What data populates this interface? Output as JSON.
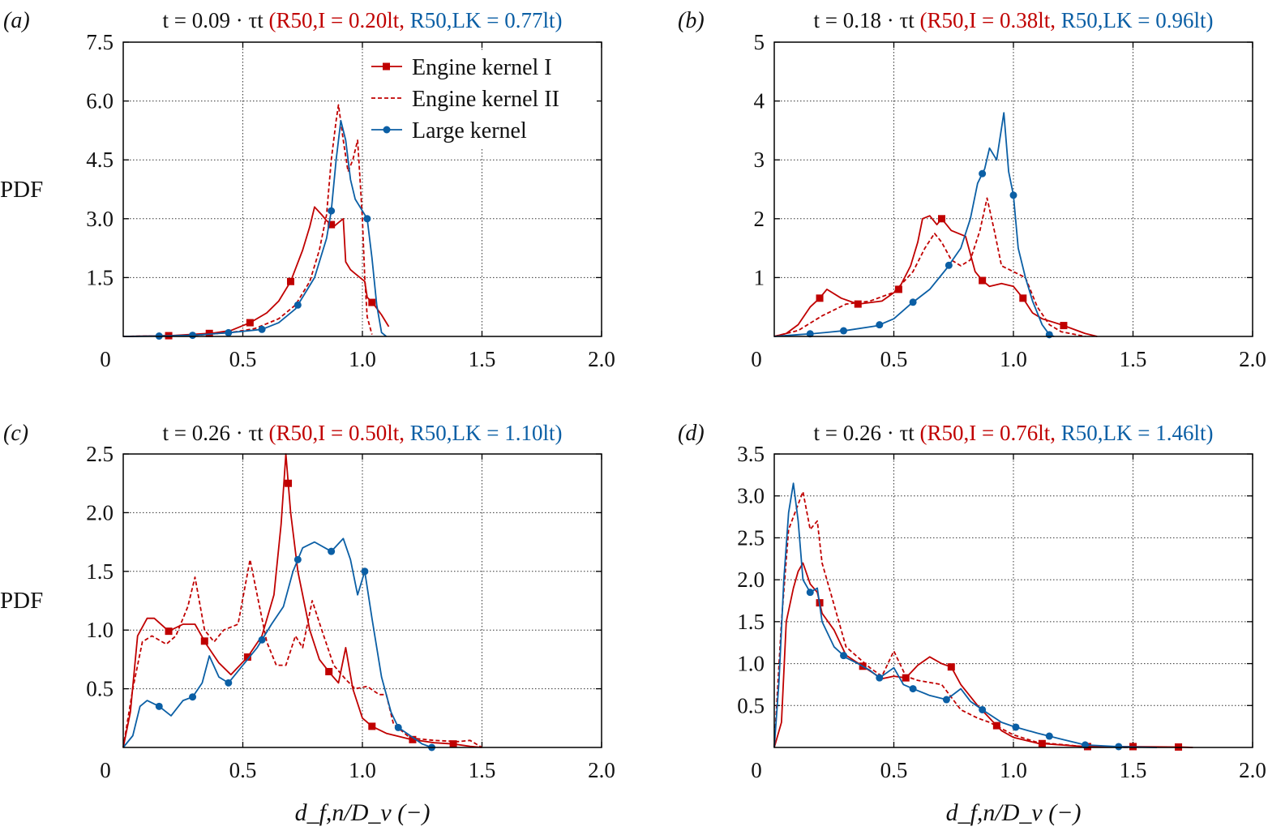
{
  "colors": {
    "engine_kernel_1": "#c00000",
    "engine_kernel_2": "#c00000",
    "large_kernel": "#0b5fa5"
  },
  "legend": [
    "Engine kernel I",
    "Engine kernel II",
    "Large kernel"
  ],
  "ylabel": "PDF",
  "xlabel": "d_f,n/D_v (−)",
  "chart_data": [
    {
      "type": "line",
      "panel": "(a)",
      "title": {
        "time": "t = 0.09 · τt",
        "red": "(R50,I = 0.20lt,",
        "blue": "R50,LK = 0.77lt)"
      },
      "xlim": [
        0,
        2.0
      ],
      "ylim": [
        0,
        7.5
      ],
      "grid": true,
      "legend": "top-right",
      "xticks": [
        "0.5",
        "1.0",
        "1.5",
        "2.0"
      ],
      "xtick_values": [
        0.5,
        1.0,
        1.5,
        2.0
      ],
      "yticks": [
        "1.5",
        "3.0",
        "4.5",
        "6.0",
        "7.5"
      ],
      "ytick_values": [
        1.5,
        3.0,
        4.5,
        6.0,
        7.5
      ],
      "origin_label": "0",
      "series": [
        {
          "name": "Engine kernel I",
          "style": "solid",
          "marker": "square",
          "marker_x": [
            0.19,
            0.36,
            0.53,
            0.7,
            0.87,
            1.04
          ],
          "x": [
            0,
            0.2,
            0.37,
            0.45,
            0.53,
            0.6,
            0.65,
            0.7,
            0.75,
            0.78,
            0.8,
            0.83,
            0.85,
            0.88,
            0.9,
            0.92,
            0.93,
            0.95,
            0.97,
            0.99,
            1.01,
            1.02,
            1.05,
            1.08,
            1.11
          ],
          "y": [
            0,
            0.02,
            0.08,
            0.15,
            0.35,
            0.6,
            0.9,
            1.4,
            2.2,
            2.8,
            3.3,
            3.1,
            2.95,
            2.8,
            2.9,
            3.0,
            1.9,
            1.7,
            1.6,
            1.5,
            1.4,
            1.0,
            0.8,
            0.55,
            0.25
          ]
        },
        {
          "name": "Engine kernel II",
          "style": "dashed",
          "marker": "none",
          "marker_x": [],
          "x": [
            0,
            0.3,
            0.45,
            0.55,
            0.65,
            0.72,
            0.78,
            0.82,
            0.85,
            0.87,
            0.89,
            0.9,
            0.92,
            0.94,
            0.96,
            0.98,
            0.99,
            1.0,
            1.01,
            1.02,
            1.04
          ],
          "y": [
            0,
            0.03,
            0.1,
            0.2,
            0.45,
            0.8,
            1.4,
            2.2,
            3.1,
            4.5,
            5.5,
            5.9,
            5.0,
            4.2,
            4.5,
            5.0,
            4.0,
            3.0,
            1.5,
            0.5,
            0.05
          ]
        },
        {
          "name": "Large kernel",
          "style": "solid",
          "marker": "circle",
          "marker_x": [
            0.15,
            0.29,
            0.44,
            0.58,
            0.73,
            0.87,
            1.02
          ],
          "x": [
            0,
            0.15,
            0.3,
            0.45,
            0.58,
            0.65,
            0.72,
            0.8,
            0.85,
            0.87,
            0.89,
            0.91,
            0.93,
            0.95,
            0.97,
            1.0,
            1.02,
            1.04,
            1.06,
            1.08,
            1.1
          ],
          "y": [
            0,
            0.01,
            0.03,
            0.1,
            0.18,
            0.35,
            0.7,
            1.5,
            2.5,
            3.2,
            4.5,
            5.5,
            5.0,
            4.0,
            3.5,
            3.2,
            3.0,
            2.0,
            0.8,
            0.1,
            0
          ]
        }
      ]
    },
    {
      "type": "line",
      "panel": "(b)",
      "title": {
        "time": "t = 0.18 · τt",
        "red": "(R50,I = 0.38lt,",
        "blue": "R50,LK = 0.96lt)"
      },
      "xlim": [
        0,
        2.0
      ],
      "ylim": [
        0,
        5
      ],
      "grid": true,
      "xticks": [
        "0.5",
        "1.0",
        "1.5",
        "2.0"
      ],
      "xtick_values": [
        0.5,
        1.0,
        1.5,
        2.0
      ],
      "yticks": [
        "1",
        "2",
        "3",
        "4",
        "5"
      ],
      "ytick_values": [
        1,
        2,
        3,
        4,
        5
      ],
      "origin_label": "0",
      "series": [
        {
          "name": "Engine kernel I",
          "style": "solid",
          "marker": "square",
          "marker_x": [
            0.19,
            0.35,
            0.52,
            0.7,
            0.87,
            1.04,
            1.21
          ],
          "x": [
            0,
            0.05,
            0.1,
            0.15,
            0.19,
            0.22,
            0.28,
            0.35,
            0.45,
            0.52,
            0.57,
            0.6,
            0.62,
            0.65,
            0.68,
            0.7,
            0.74,
            0.8,
            0.84,
            0.87,
            0.9,
            0.95,
            1.0,
            1.04,
            1.08,
            1.12,
            1.2,
            1.3,
            1.35
          ],
          "y": [
            0,
            0.05,
            0.2,
            0.5,
            0.65,
            0.8,
            0.65,
            0.55,
            0.6,
            0.8,
            1.2,
            1.6,
            2.0,
            2.05,
            1.9,
            2.0,
            1.8,
            1.7,
            1.1,
            0.95,
            0.85,
            0.9,
            0.85,
            0.65,
            0.4,
            0.3,
            0.2,
            0.05,
            0
          ]
        },
        {
          "name": "Engine kernel II",
          "style": "dashed",
          "marker": "none",
          "marker_x": [],
          "x": [
            0,
            0.1,
            0.2,
            0.3,
            0.4,
            0.5,
            0.58,
            0.63,
            0.67,
            0.7,
            0.74,
            0.78,
            0.82,
            0.86,
            0.89,
            0.92,
            0.95,
            1.0,
            1.05,
            1.1,
            1.15,
            1.2,
            1.3
          ],
          "y": [
            0,
            0.1,
            0.35,
            0.55,
            0.6,
            0.75,
            1.1,
            1.5,
            1.75,
            1.6,
            1.3,
            1.2,
            1.3,
            1.8,
            2.35,
            1.8,
            1.2,
            1.1,
            1.0,
            0.5,
            0.2,
            0.08,
            0
          ]
        },
        {
          "name": "Large kernel",
          "style": "solid",
          "marker": "circle",
          "marker_x": [
            0.15,
            0.29,
            0.44,
            0.58,
            0.73,
            0.87,
            1.0,
            1.15
          ],
          "x": [
            0,
            0.1,
            0.17,
            0.3,
            0.43,
            0.5,
            0.57,
            0.65,
            0.72,
            0.78,
            0.82,
            0.85,
            0.88,
            0.9,
            0.93,
            0.96,
            0.98,
            1.0,
            1.02,
            1.05,
            1.08,
            1.12,
            1.15,
            1.17
          ],
          "y": [
            0,
            0.03,
            0.05,
            0.1,
            0.18,
            0.3,
            0.55,
            0.8,
            1.15,
            1.5,
            2.0,
            2.6,
            2.85,
            3.2,
            3.0,
            3.8,
            2.8,
            2.4,
            1.5,
            1.0,
            0.6,
            0.2,
            0.03,
            0
          ]
        }
      ]
    },
    {
      "type": "line",
      "panel": "(c)",
      "title": {
        "time": "t = 0.26 · τt",
        "red": "(R50,I = 0.50lt,",
        "blue": "R50,LK = 1.10lt)"
      },
      "xlim": [
        0,
        2.0
      ],
      "ylim": [
        0,
        2.5
      ],
      "grid": true,
      "xticks": [
        "0.5",
        "1.0",
        "1.5",
        "2.0"
      ],
      "xtick_values": [
        0.5,
        1.0,
        1.5,
        2.0
      ],
      "yticks": [
        "0.5",
        "1.0",
        "1.5",
        "2.0",
        "2.5"
      ],
      "ytick_values": [
        0.5,
        1.0,
        1.5,
        2.0,
        2.5
      ],
      "origin_label": "0",
      "series": [
        {
          "name": "Engine kernel I",
          "style": "solid",
          "marker": "square",
          "marker_x": [
            0.19,
            0.34,
            0.52,
            0.69,
            0.86,
            1.04,
            1.21,
            1.38
          ],
          "x": [
            0,
            0.03,
            0.06,
            0.1,
            0.13,
            0.19,
            0.25,
            0.3,
            0.35,
            0.4,
            0.45,
            0.52,
            0.58,
            0.63,
            0.66,
            0.68,
            0.7,
            0.73,
            0.78,
            0.82,
            0.87,
            0.9,
            0.93,
            0.96,
            1.0,
            1.04,
            1.1,
            1.2,
            1.3,
            1.38,
            1.45,
            1.5
          ],
          "y": [
            0,
            0.3,
            0.95,
            1.1,
            1.1,
            0.99,
            1.05,
            1.05,
            0.87,
            0.72,
            0.62,
            0.77,
            0.95,
            1.3,
            1.9,
            2.5,
            2.0,
            1.5,
            1.0,
            0.75,
            0.62,
            0.55,
            0.85,
            0.5,
            0.25,
            0.18,
            0.12,
            0.07,
            0.04,
            0.03,
            0.01,
            0
          ]
        },
        {
          "name": "Engine kernel II",
          "style": "dashed",
          "marker": "none",
          "marker_x": [],
          "x": [
            0,
            0.04,
            0.08,
            0.12,
            0.18,
            0.22,
            0.27,
            0.3,
            0.34,
            0.38,
            0.42,
            0.48,
            0.53,
            0.56,
            0.6,
            0.64,
            0.68,
            0.72,
            0.75,
            0.79,
            0.83,
            0.88,
            0.93,
            0.97,
            1.02,
            1.07,
            1.1,
            1.13,
            1.2,
            1.3,
            1.4,
            1.45,
            1.5
          ],
          "y": [
            0,
            0.5,
            0.9,
            0.95,
            0.88,
            0.95,
            1.2,
            1.45,
            1.0,
            0.9,
            1.0,
            1.05,
            1.6,
            1.3,
            0.9,
            0.7,
            0.7,
            0.95,
            0.85,
            1.25,
            1.0,
            0.7,
            0.58,
            0.5,
            0.52,
            0.45,
            0.45,
            0.2,
            0.08,
            0.06,
            0.05,
            0.06,
            0
          ]
        },
        {
          "name": "Large kernel",
          "style": "solid",
          "marker": "circle",
          "marker_x": [
            0.15,
            0.29,
            0.44,
            0.58,
            0.73,
            0.87,
            1.01,
            1.15,
            1.29
          ],
          "x": [
            0,
            0.04,
            0.07,
            0.1,
            0.15,
            0.2,
            0.25,
            0.29,
            0.33,
            0.36,
            0.4,
            0.44,
            0.5,
            0.56,
            0.62,
            0.67,
            0.71,
            0.75,
            0.8,
            0.87,
            0.92,
            0.95,
            0.98,
            1.01,
            1.04,
            1.08,
            1.12,
            1.15,
            1.2,
            1.25,
            1.29
          ],
          "y": [
            0,
            0.1,
            0.35,
            0.4,
            0.35,
            0.27,
            0.4,
            0.43,
            0.55,
            0.78,
            0.6,
            0.55,
            0.7,
            0.85,
            1.05,
            1.2,
            1.5,
            1.7,
            1.75,
            1.67,
            1.78,
            1.6,
            1.3,
            1.5,
            1.1,
            0.6,
            0.3,
            0.17,
            0.1,
            0.03,
            0
          ]
        }
      ]
    },
    {
      "type": "line",
      "panel": "(d)",
      "title": {
        "time": "t = 0.26 · τt",
        "red": "(R50,I = 0.76lt,",
        "blue": "R50,LK = 1.46lt)"
      },
      "xlim": [
        0,
        2.0
      ],
      "ylim": [
        0,
        3.5
      ],
      "grid": true,
      "xticks": [
        "0.5",
        "1.0",
        "1.5",
        "2.0"
      ],
      "xtick_values": [
        0.5,
        1.0,
        1.5,
        2.0
      ],
      "yticks": [
        "0.5",
        "1.0",
        "1.5",
        "2.0",
        "2.5",
        "3.0",
        "3.5"
      ],
      "ytick_values": [
        0.5,
        1.0,
        1.5,
        2.0,
        2.5,
        3.0,
        3.5
      ],
      "origin_label": "0",
      "series": [
        {
          "name": "Engine kernel I",
          "style": "solid",
          "marker": "square",
          "marker_x": [
            0.19,
            0.37,
            0.55,
            0.74,
            0.93,
            1.12,
            1.31,
            1.5,
            1.69
          ],
          "x": [
            0,
            0.03,
            0.05,
            0.08,
            0.1,
            0.12,
            0.15,
            0.18,
            0.2,
            0.25,
            0.3,
            0.38,
            0.45,
            0.5,
            0.55,
            0.6,
            0.65,
            0.7,
            0.74,
            0.78,
            0.85,
            0.9,
            0.95,
            1.0,
            1.1,
            1.3,
            1.5,
            1.7,
            1.75
          ],
          "y": [
            0,
            0.3,
            1.5,
            1.9,
            2.1,
            2.2,
            1.95,
            1.85,
            1.6,
            1.4,
            1.1,
            0.95,
            0.82,
            0.85,
            0.83,
            0.98,
            1.08,
            1.0,
            0.96,
            0.75,
            0.5,
            0.35,
            0.2,
            0.12,
            0.05,
            0.01,
            0.01,
            0.005,
            0
          ]
        },
        {
          "name": "Engine kernel II",
          "style": "dashed",
          "marker": "none",
          "marker_x": [],
          "x": [
            0,
            0.03,
            0.06,
            0.1,
            0.12,
            0.15,
            0.18,
            0.2,
            0.25,
            0.3,
            0.4,
            0.45,
            0.5,
            0.55,
            0.6,
            0.7,
            0.78,
            0.85,
            0.9,
            1.0,
            1.1,
            1.3,
            1.5
          ],
          "y": [
            0,
            1.5,
            2.6,
            2.9,
            3.05,
            2.6,
            2.7,
            2.2,
            1.7,
            1.2,
            0.95,
            0.85,
            1.15,
            0.85,
            0.8,
            0.75,
            0.45,
            0.35,
            0.3,
            0.15,
            0.06,
            0.01,
            0
          ]
        },
        {
          "name": "Large kernel",
          "style": "solid",
          "marker": "circle",
          "marker_x": [
            0.15,
            0.29,
            0.44,
            0.58,
            0.72,
            0.87,
            1.01,
            1.15,
            1.3,
            1.44
          ],
          "x": [
            0,
            0.02,
            0.04,
            0.06,
            0.08,
            0.1,
            0.12,
            0.15,
            0.18,
            0.2,
            0.25,
            0.3,
            0.35,
            0.4,
            0.44,
            0.5,
            0.54,
            0.58,
            0.65,
            0.72,
            0.78,
            0.82,
            0.87,
            0.95,
            1.0,
            1.1,
            1.2,
            1.3,
            1.44,
            1.6
          ],
          "y": [
            0,
            0.8,
            2.0,
            2.8,
            3.15,
            2.7,
            2.0,
            1.85,
            1.9,
            1.5,
            1.2,
            1.07,
            1.0,
            0.92,
            0.83,
            0.95,
            0.75,
            0.7,
            0.62,
            0.57,
            0.7,
            0.55,
            0.45,
            0.3,
            0.25,
            0.17,
            0.1,
            0.03,
            0.01,
            0
          ]
        }
      ]
    }
  ]
}
